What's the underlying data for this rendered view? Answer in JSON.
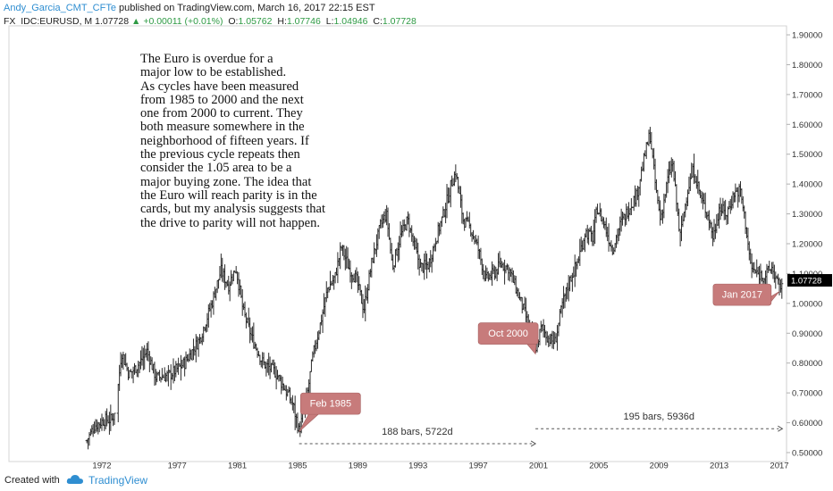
{
  "header": {
    "author": "Andy_Garcia_CMT_CFTe",
    "published": " published on TradingView.com, March 16, 2017 22:15 EST",
    "symbol": "FX_IDC:EURUSD, M",
    "last": "1.07728",
    "change": "+0.00011 (+0.01%)",
    "o_label": "O:",
    "o_value": "1.05762",
    "h_label": "H:",
    "h_value": "1.07746",
    "l_label": "L:",
    "l_value": "1.04946",
    "c_label": "C:",
    "c_value": "1.07728",
    "accent": "#2e9a44"
  },
  "annotation_text": "The Euro is overdue for a\nmajor low to be established.\nAs cycles have been measured\nfrom 1985 to 2000 and the next\none from 2000 to current.  They\nboth measure somewhere in the\nneighborhood of fifteen years. If\nthe previous cycle repeats then\nconsider the 1.05 area to be a\nmajor buying zone.  The idea that\nthe Euro will reach parity is in the\ncards, but my analysis suggests that\nthe drive to parity will not happen.",
  "footer": {
    "created_with": "Created with",
    "brand": "TradingView",
    "icon": "tradingview-cloud-icon"
  },
  "chart_data": {
    "type": "ohlc",
    "symbol": "FX_IDC:EURUSD",
    "interval": "M",
    "x_axis": {
      "ticks": [
        "1972",
        "1977",
        "1981",
        "1985",
        "1989",
        "1993",
        "1997",
        "2001",
        "2005",
        "2009",
        "2013",
        "2017"
      ]
    },
    "y_axis": {
      "side": "right",
      "ticks": [
        "0.50000",
        "0.60000",
        "0.70000",
        "0.80000",
        "0.90000",
        "1.00000",
        "1.10000",
        "1.20000",
        "1.30000",
        "1.40000",
        "1.50000",
        "1.60000",
        "1.70000",
        "1.80000",
        "1.90000"
      ],
      "range": [
        0.47,
        1.93
      ]
    },
    "last_price_label": "1.07728",
    "last_price_color": "#000000",
    "bar_color": "#2b2b2b",
    "grid": false,
    "series": [
      {
        "anchors": [
          [
            1971.0,
            0.54
          ],
          [
            1971.5,
            0.59
          ],
          [
            1972.2,
            0.61
          ],
          [
            1972.7,
            0.61
          ],
          [
            1973.0,
            0.68
          ],
          [
            1973.3,
            0.84
          ],
          [
            1973.8,
            0.76
          ],
          [
            1974.5,
            0.8
          ],
          [
            1975.0,
            0.84
          ],
          [
            1975.6,
            0.75
          ],
          [
            1976.5,
            0.76
          ],
          [
            1977.5,
            0.8
          ],
          [
            1978.5,
            0.88
          ],
          [
            1979.3,
            1.0
          ],
          [
            1979.9,
            1.11
          ],
          [
            1980.4,
            1.06
          ],
          [
            1980.9,
            1.12
          ],
          [
            1981.4,
            0.97
          ],
          [
            1982.0,
            0.88
          ],
          [
            1982.7,
            0.8
          ],
          [
            1983.5,
            0.77
          ],
          [
            1984.2,
            0.71
          ],
          [
            1984.7,
            0.66
          ],
          [
            1985.1,
            0.57
          ],
          [
            1985.6,
            0.68
          ],
          [
            1986.0,
            0.82
          ],
          [
            1986.5,
            0.93
          ],
          [
            1987.0,
            1.05
          ],
          [
            1987.5,
            1.09
          ],
          [
            1987.9,
            1.19
          ],
          [
            1988.4,
            1.12
          ],
          [
            1988.9,
            1.08
          ],
          [
            1989.4,
            0.98
          ],
          [
            1989.9,
            1.13
          ],
          [
            1990.5,
            1.26
          ],
          [
            1990.9,
            1.3
          ],
          [
            1991.3,
            1.12
          ],
          [
            1991.8,
            1.22
          ],
          [
            1992.3,
            1.28
          ],
          [
            1992.8,
            1.18
          ],
          [
            1993.2,
            1.12
          ],
          [
            1993.7,
            1.13
          ],
          [
            1994.2,
            1.22
          ],
          [
            1994.7,
            1.3
          ],
          [
            1995.2,
            1.4
          ],
          [
            1995.5,
            1.44
          ],
          [
            1996.0,
            1.28
          ],
          [
            1996.5,
            1.25
          ],
          [
            1997.0,
            1.18
          ],
          [
            1997.5,
            1.08
          ],
          [
            1998.0,
            1.1
          ],
          [
            1998.5,
            1.13
          ],
          [
            1999.0,
            1.12
          ],
          [
            1999.5,
            1.05
          ],
          [
            2000.2,
            0.95
          ],
          [
            2000.8,
            0.85
          ],
          [
            2001.2,
            0.92
          ],
          [
            2001.7,
            0.88
          ],
          [
            2002.1,
            0.87
          ],
          [
            2002.6,
            1.0
          ],
          [
            2003.1,
            1.08
          ],
          [
            2003.6,
            1.14
          ],
          [
            2004.1,
            1.24
          ],
          [
            2004.6,
            1.22
          ],
          [
            2004.9,
            1.32
          ],
          [
            2005.4,
            1.26
          ],
          [
            2005.9,
            1.18
          ],
          [
            2006.4,
            1.26
          ],
          [
            2007.0,
            1.32
          ],
          [
            2007.5,
            1.36
          ],
          [
            2008.0,
            1.48
          ],
          [
            2008.4,
            1.57
          ],
          [
            2008.8,
            1.38
          ],
          [
            2009.1,
            1.28
          ],
          [
            2009.6,
            1.42
          ],
          [
            2009.9,
            1.47
          ],
          [
            2010.4,
            1.22
          ],
          [
            2010.9,
            1.38
          ],
          [
            2011.3,
            1.45
          ],
          [
            2011.8,
            1.35
          ],
          [
            2012.3,
            1.29
          ],
          [
            2012.6,
            1.22
          ],
          [
            2013.0,
            1.32
          ],
          [
            2013.5,
            1.3
          ],
          [
            2014.0,
            1.37
          ],
          [
            2014.4,
            1.38
          ],
          [
            2014.8,
            1.25
          ],
          [
            2015.1,
            1.12
          ],
          [
            2015.5,
            1.1
          ],
          [
            2016.0,
            1.09
          ],
          [
            2016.5,
            1.12
          ],
          [
            2017.0,
            1.05
          ],
          [
            2017.2,
            1.07728
          ]
        ]
      }
    ],
    "annotations": [
      {
        "label": "Feb 1985",
        "pointer_x": 1985.1,
        "pointer_y": 0.57
      },
      {
        "label": "Oct 2000",
        "pointer_x": 2000.8,
        "pointer_y": 0.83
      },
      {
        "label": "Jan 2017",
        "pointer_x": 2017.0,
        "pointer_y": 1.04
      }
    ],
    "callout_color": "#c77b7b",
    "measurements": [
      {
        "label": "188 bars, 5722d",
        "x_start": 1985.1,
        "x_end": 2000.8,
        "y": 0.53
      },
      {
        "label": "195 bars, 5936d",
        "x_start": 2000.8,
        "x_end": 2017.2,
        "y": 0.58
      }
    ]
  }
}
